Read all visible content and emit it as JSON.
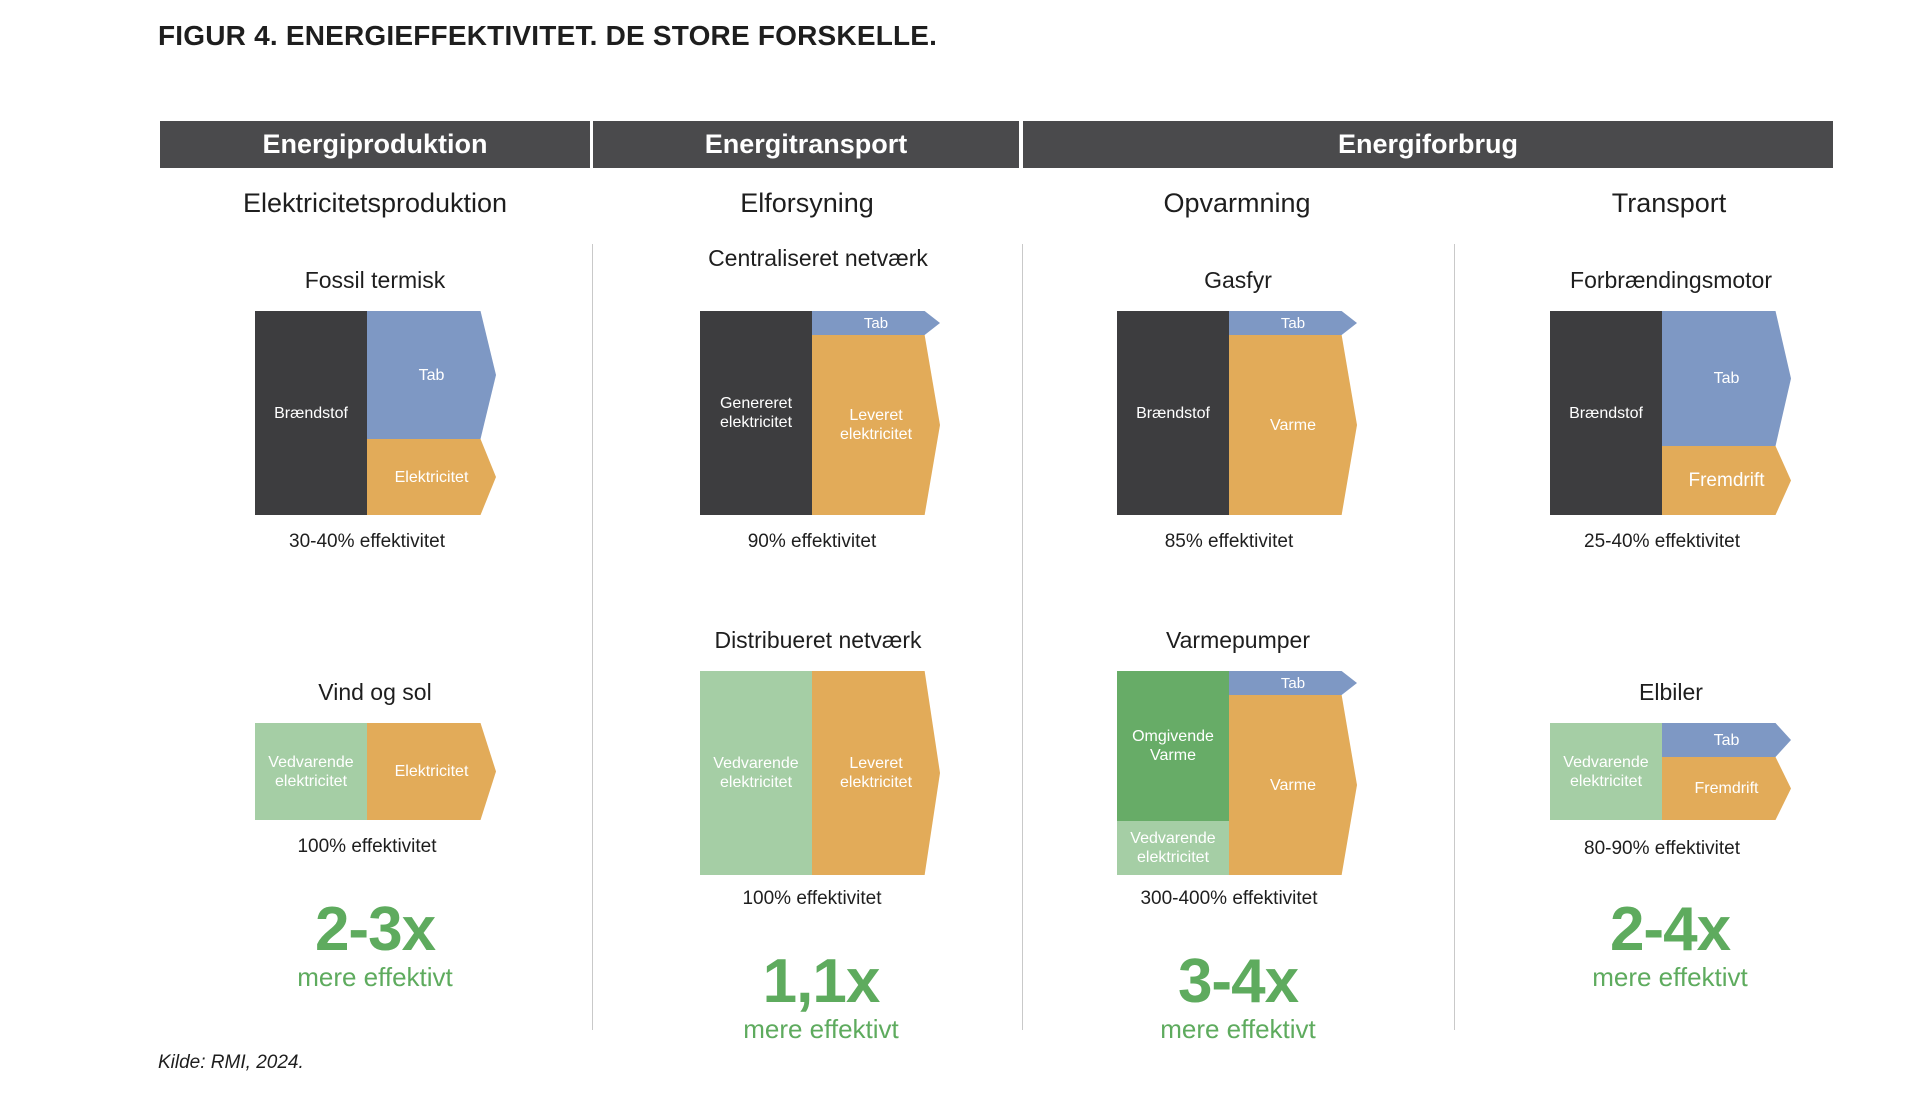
{
  "title": "FIGUR 4. ENERGIEFFEKTIVITET. DE STORE FORSKELLE.",
  "headers": [
    "Energiproduktion",
    "Energitransport",
    "Energiforbrug"
  ],
  "subheaders": [
    "Elektricitetsproduktion",
    "Elforsyning",
    "Opvarmning",
    "Transport"
  ],
  "columns": [
    {
      "top": {
        "label": "Fossil termisk",
        "base": "Brændstof",
        "loss": "Tab",
        "output": "Elektricitet",
        "efficiency": "30-40% effektivitet"
      },
      "bottom": {
        "label": "Vind og sol",
        "base": "Vedvarende elektricitet",
        "output": "Elektricitet",
        "efficiency": "100% effektivitet"
      },
      "multiplier": "2-3x",
      "more": "mere effektivt"
    },
    {
      "top": {
        "label": "Centraliseret netværk",
        "base": "Genereret elektricitet",
        "loss": "Tab",
        "output": "Leveret elektricitet",
        "efficiency": "90% effektivitet"
      },
      "bottom": {
        "label": "Distribueret netværk",
        "base": "Vedvarende elektricitet",
        "output": "Leveret elektricitet",
        "efficiency": "100% effektivitet"
      },
      "multiplier": "1,1x",
      "more": "mere effektivt"
    },
    {
      "top": {
        "label": "Gasfyr",
        "base": "Brændstof",
        "loss": "Tab",
        "output": "Varme",
        "efficiency": "85% effektivitet"
      },
      "bottom": {
        "label": "Varmepumper",
        "base_top": "Omgivende Varme",
        "base": "Vedvarende elektricitet",
        "loss": "Tab",
        "output": "Varme",
        "efficiency": "300-400% effektivitet"
      },
      "multiplier": "3-4x",
      "more": "mere effektivt"
    },
    {
      "top": {
        "label": "Forbrændingsmotor",
        "base": "Brændstof",
        "loss": "Tab",
        "output": "Fremdrift",
        "efficiency": "25-40% effektivitet"
      },
      "bottom": {
        "label": "Elbiler",
        "base": "Vedvarende elektricitet",
        "loss": "Tab",
        "output": "Fremdrift",
        "efficiency": "80-90% effektivitet"
      },
      "multiplier": "2-4x",
      "more": "mere effektivt"
    }
  ],
  "source": "Kilde: RMI, 2024.",
  "colors": {
    "dark": "#3d3d3f",
    "loss": "#7e98c4",
    "output": "#e2ab59",
    "renewable": "#a5cea5",
    "ambient": "#67ac67",
    "accent": "#5eab5e",
    "header": "#4a4a4c"
  }
}
